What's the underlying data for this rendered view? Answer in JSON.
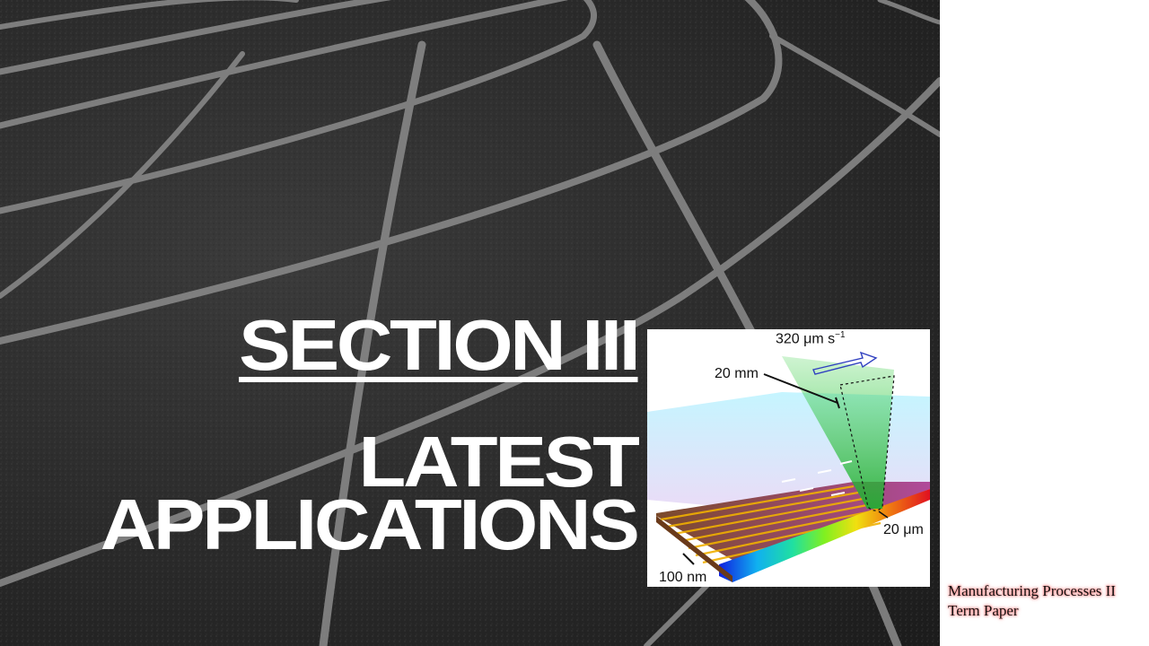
{
  "slide": {
    "section_title": "SECTION III",
    "subtitle_line1": "LATEST",
    "subtitle_line2": "APPLICATIONS",
    "footer_line1": "Manufacturing Processes II",
    "footer_line2": "Term Paper"
  },
  "figure": {
    "speed_label": "320 μm s",
    "speed_exp": "−1",
    "length_label": "20 mm",
    "width_label": "20 μm",
    "thickness_label": "100 nm"
  },
  "colors": {
    "track_surface": "#2a2a2a",
    "lane_lines": "#8a8a8a",
    "title_text": "#ffffff",
    "footer_glow": "#ff8a8a",
    "laser_beam": "#3fd24a"
  }
}
